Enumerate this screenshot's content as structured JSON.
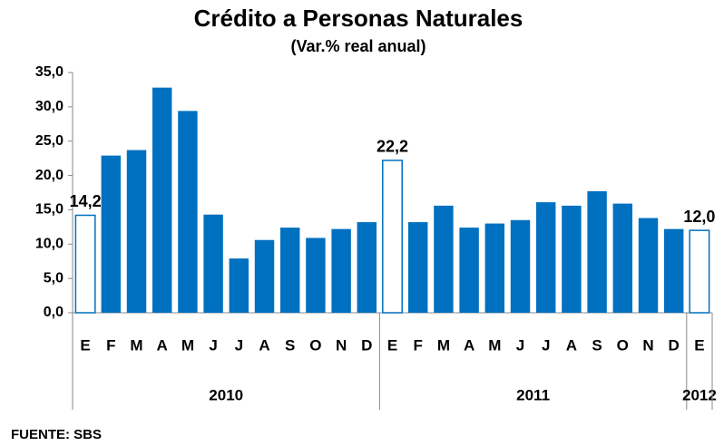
{
  "chart_data": {
    "type": "bar",
    "title": "Crédito a Personas Naturales",
    "subtitle": "(Var.% real anual)",
    "source": "FUENTE: SBS",
    "categories": [
      "E",
      "F",
      "M",
      "A",
      "M",
      "J",
      "J",
      "A",
      "S",
      "O",
      "N",
      "D",
      "E",
      "F",
      "M",
      "A",
      "M",
      "J",
      "J",
      "A",
      "S",
      "O",
      "N",
      "D",
      "E"
    ],
    "groups": [
      {
        "label": "2010",
        "count": 12
      },
      {
        "label": "2011",
        "count": 12
      },
      {
        "label": "2012",
        "count": 1
      }
    ],
    "values": [
      14.2,
      22.9,
      23.7,
      32.8,
      29.4,
      14.3,
      7.9,
      10.6,
      12.4,
      10.9,
      12.2,
      13.2,
      22.2,
      13.2,
      15.6,
      12.4,
      13.0,
      13.5,
      16.1,
      15.6,
      17.7,
      15.9,
      13.8,
      12.2,
      12.0
    ],
    "value_labels": [
      "14,2",
      null,
      null,
      null,
      null,
      null,
      null,
      null,
      null,
      null,
      null,
      null,
      "22,2",
      null,
      null,
      null,
      null,
      null,
      null,
      null,
      null,
      null,
      null,
      null,
      "12,0"
    ],
    "color": "#0070c0",
    "ylim": [
      0,
      35
    ],
    "yticks": [
      {
        "value": 0,
        "label": "0,0"
      },
      {
        "value": 5,
        "label": "5,0"
      },
      {
        "value": 10,
        "label": "10,0"
      },
      {
        "value": 15,
        "label": "15,0"
      },
      {
        "value": 20,
        "label": "20,0"
      },
      {
        "value": 25,
        "label": "25,0"
      },
      {
        "value": 30,
        "label": "30,0"
      },
      {
        "value": 35,
        "label": "35,0"
      }
    ],
    "grid": false
  }
}
